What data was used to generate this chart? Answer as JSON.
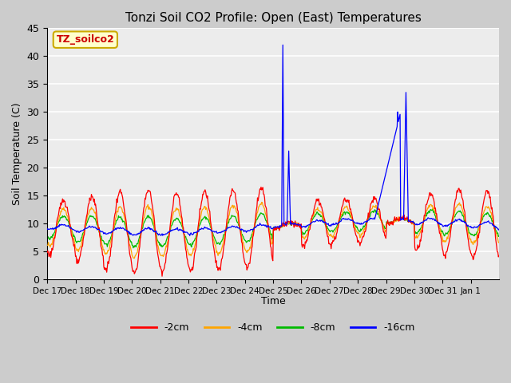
{
  "title": "Tonzi Soil CO2 Profile: Open (East) Temperatures",
  "ylabel": "Soil Temperature (C)",
  "xlabel": "Time",
  "station_label": "TZ_soilco2",
  "ylim": [
    0,
    45
  ],
  "colors": {
    "-2cm": "#ff0000",
    "-4cm": "#ffa500",
    "-8cm": "#00bb00",
    "-16cm": "#0000ff"
  },
  "xtick_labels": [
    "Dec 17",
    "Dec 18",
    "Dec 19",
    "Dec 20",
    "Dec 21",
    "Dec 22",
    "Dec 23",
    "Dec 24",
    "Dec 25",
    "Dec 26",
    "Dec 27",
    "Dec 28",
    "Dec 29",
    "Dec 30",
    "Dec 31",
    "Jan 1"
  ],
  "ytick_vals": [
    0,
    5,
    10,
    15,
    20,
    25,
    30,
    35,
    40,
    45
  ],
  "background_color": "#cccccc",
  "plot_bg": "#ececec",
  "fig_width": 6.4,
  "fig_height": 4.8,
  "dpi": 100
}
